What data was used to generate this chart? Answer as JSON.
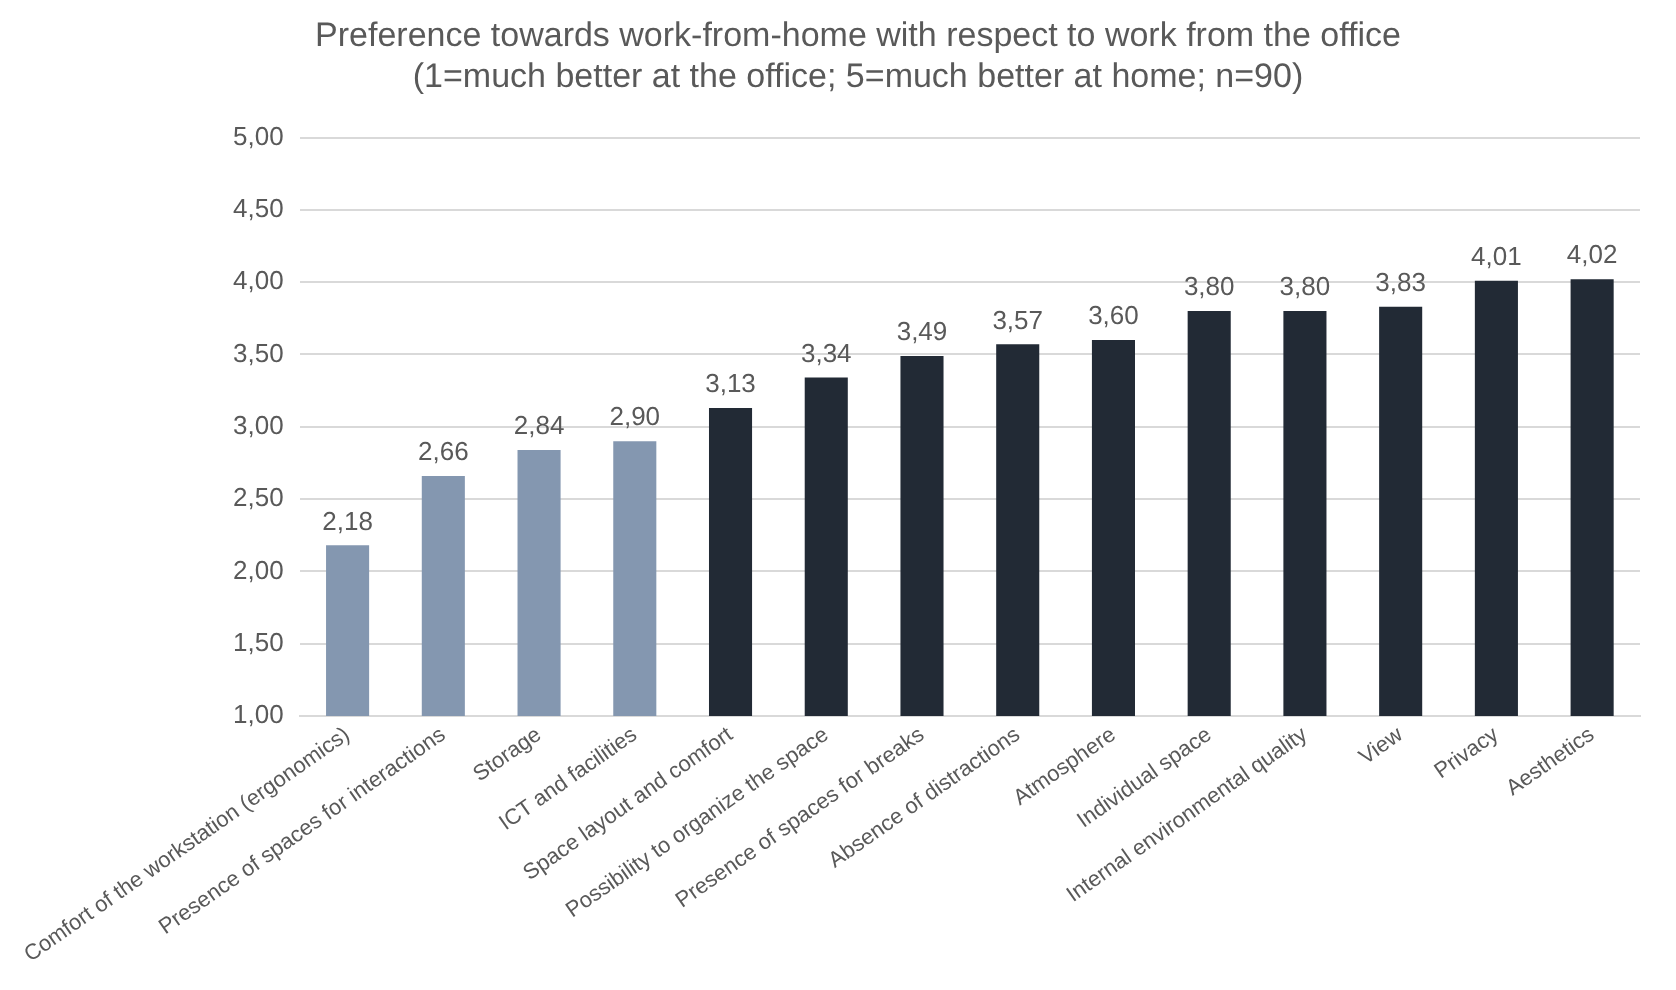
{
  "chart_data": {
    "type": "bar",
    "title": "Preference towards work-from-home with respect to work from the office",
    "subtitle": "(1=much better at the office; 5=much better at home; n=90)",
    "categories": [
      "Comfort of the workstation (ergonomics)",
      "Presence of spaces for interactions",
      "Storage",
      "ICT and facilities",
      "Space layout and comfort",
      "Possibility to organize the space",
      "Presence of spaces for breaks",
      "Absence of distractions",
      "Atmosphere",
      "Individual space",
      "Internal environmental quality",
      "View",
      "Privacy",
      "Aesthetics"
    ],
    "values": [
      2.18,
      2.66,
      2.84,
      2.9,
      3.13,
      3.34,
      3.49,
      3.57,
      3.6,
      3.8,
      3.8,
      3.83,
      4.01,
      4.02
    ],
    "value_labels": [
      "2,18",
      "2,66",
      "2,84",
      "2,90",
      "3,13",
      "3,34",
      "3,49",
      "3,57",
      "3,60",
      "3,80",
      "3,80",
      "3,83",
      "4,01",
      "4,02"
    ],
    "colors": [
      "#8497b0",
      "#8497b0",
      "#8497b0",
      "#8497b0",
      "#222a35",
      "#222a35",
      "#222a35",
      "#222a35",
      "#222a35",
      "#222a35",
      "#222a35",
      "#222a35",
      "#222a35",
      "#222a35"
    ],
    "ylim": [
      1,
      5
    ],
    "yticks": [
      {
        "value": 1,
        "label": "1,00"
      },
      {
        "value": 1.5,
        "label": "1,50"
      },
      {
        "value": 2,
        "label": "2,00"
      },
      {
        "value": 2.5,
        "label": "2,50"
      },
      {
        "value": 3,
        "label": "3,00"
      },
      {
        "value": 3.5,
        "label": "3,50"
      },
      {
        "value": 4,
        "label": "4,00"
      },
      {
        "value": 4.5,
        "label": "4,50"
      },
      {
        "value": 5,
        "label": "5,00"
      }
    ],
    "grid": "y",
    "legend": false
  }
}
